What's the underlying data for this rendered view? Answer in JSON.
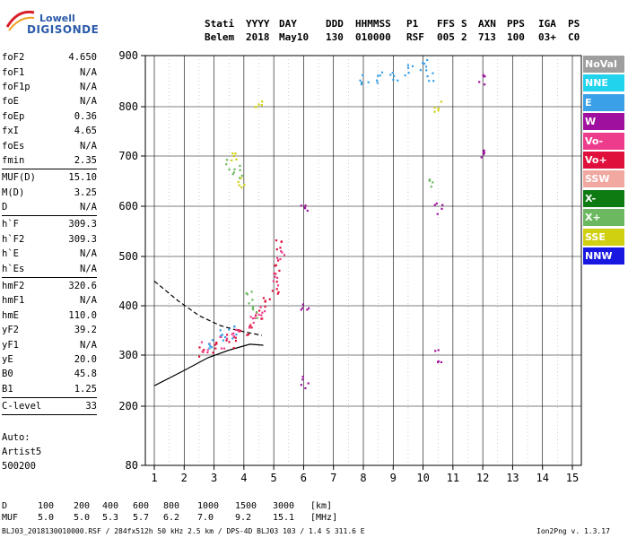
{
  "logo": {
    "line1": "Lowell",
    "line2": "DIGISONDE"
  },
  "header": {
    "row1": [
      "Stati",
      "YYYY",
      "DAY",
      "DDD",
      "HHMMSS",
      "P1",
      "FFS",
      "S",
      "AXN",
      "PPS",
      "IGA",
      "PS"
    ],
    "row2": [
      "Belem",
      "2018",
      "May10",
      "130",
      "010000",
      "RSF",
      "005",
      "2",
      "713",
      "100",
      "03+",
      "C0"
    ]
  },
  "params": [
    {
      "name": "foF2",
      "value": "4.650"
    },
    {
      "name": "foF1",
      "value": "N/A"
    },
    {
      "name": "foF1p",
      "value": "N/A"
    },
    {
      "name": "foE",
      "value": "N/A"
    },
    {
      "name": "foEp",
      "value": "0.36"
    },
    {
      "name": "fxI",
      "value": "4.65"
    },
    {
      "name": "foEs",
      "value": "N/A"
    },
    {
      "name": "fmin",
      "value": "2.35"
    },
    {
      "sep": true
    },
    {
      "name": "MUF(D)",
      "value": "15.10"
    },
    {
      "name": "M(D)",
      "value": "3.25"
    },
    {
      "name": "D",
      "value": "N/A"
    },
    {
      "sep": true
    },
    {
      "name": "h`F",
      "value": "309.3"
    },
    {
      "name": "h`F2",
      "value": "309.3"
    },
    {
      "name": "h`E",
      "value": "N/A"
    },
    {
      "name": "h`Es",
      "value": "N/A"
    },
    {
      "sep": true
    },
    {
      "name": "hmF2",
      "value": "320.6"
    },
    {
      "name": "hmF1",
      "value": "N/A"
    },
    {
      "name": "hmE",
      "value": "110.0"
    },
    {
      "name": "yF2",
      "value": "39.2"
    },
    {
      "name": "yF1",
      "value": "N/A"
    },
    {
      "name": "yE",
      "value": "20.0"
    },
    {
      "name": "B0",
      "value": "45.8"
    },
    {
      "name": "B1",
      "value": "1.25"
    },
    {
      "sep": true
    },
    {
      "name": "C-level",
      "value": "33"
    },
    {
      "sep": true
    }
  ],
  "auto": [
    "Auto:",
    "Artist5",
    "500200"
  ],
  "legend": [
    {
      "label": "NoVal",
      "color": "#9e9e9e"
    },
    {
      "label": "NNE",
      "color": "#22d3ee"
    },
    {
      "label": "E",
      "color": "#3aa0e8"
    },
    {
      "label": "W",
      "color": "#a0109e"
    },
    {
      "label": "Vo-",
      "color": "#ee3c8c"
    },
    {
      "label": "Vo+",
      "color": "#e0103c"
    },
    {
      "label": "SSW",
      "color": "#f0a8a0"
    },
    {
      "label": "X-",
      "color": "#0e7a12"
    },
    {
      "label": "X+",
      "color": "#6cb860"
    },
    {
      "label": "SSE",
      "color": "#d0d010"
    },
    {
      "label": "NNW",
      "color": "#1818e0"
    }
  ],
  "chart_data": {
    "type": "scatter",
    "x_ticks": [
      "1",
      "2",
      "3",
      "4",
      "5",
      "6",
      "7",
      "8",
      "9",
      "10",
      "11",
      "12",
      "13",
      "14",
      "15"
    ],
    "y_ticks": [
      "80",
      "200",
      "300",
      "400",
      "500",
      "600",
      "700",
      "800",
      "900"
    ],
    "xlim": [
      1,
      15
    ],
    "y_scale": "reciprocal",
    "grid": true,
    "series": [
      {
        "name": "Vo+",
        "color": "#e0103c",
        "points": [
          [
            2.6,
            310
          ],
          [
            3.0,
            315
          ],
          [
            3.5,
            330
          ],
          [
            3.8,
            345
          ],
          [
            4.2,
            355
          ],
          [
            4.5,
            380
          ],
          [
            4.7,
            410
          ],
          [
            5.0,
            440
          ],
          [
            5.1,
            480
          ],
          [
            5.2,
            530
          ]
        ]
      },
      {
        "name": "Vo-",
        "color": "#ee3c8c",
        "points": [
          [
            2.7,
            318
          ],
          [
            3.3,
            325
          ],
          [
            3.7,
            340
          ],
          [
            4.3,
            365
          ],
          [
            4.6,
            395
          ],
          [
            5.1,
            455
          ],
          [
            5.2,
            510
          ]
        ]
      },
      {
        "name": "E",
        "color": "#3aa0e8",
        "points": [
          [
            2.8,
            330
          ],
          [
            3.2,
            340
          ],
          [
            3.6,
            350
          ],
          [
            8.0,
            850
          ],
          [
            8.5,
            860
          ],
          [
            9.0,
            855
          ],
          [
            9.5,
            870
          ],
          [
            10.0,
            880
          ],
          [
            10.2,
            865
          ]
        ]
      },
      {
        "name": "W",
        "color": "#a0109e",
        "points": [
          [
            6.0,
            250
          ],
          [
            6.0,
            400
          ],
          [
            6.0,
            600
          ],
          [
            10.5,
            300
          ],
          [
            10.5,
            600
          ],
          [
            12.0,
            700
          ],
          [
            12.0,
            850
          ]
        ]
      },
      {
        "name": "X+",
        "color": "#6cb860",
        "points": [
          [
            3.5,
            680
          ],
          [
            3.8,
            670
          ],
          [
            4.2,
            420
          ],
          [
            4.4,
            390
          ],
          [
            10.3,
            650
          ]
        ]
      },
      {
        "name": "SSE",
        "color": "#d0d010",
        "points": [
          [
            3.6,
            700
          ],
          [
            3.9,
            650
          ],
          [
            4.5,
            800
          ],
          [
            10.5,
            800
          ]
        ]
      }
    ],
    "curves": [
      {
        "style": "dashed",
        "points": [
          [
            1.0,
            450
          ],
          [
            1.8,
            410
          ],
          [
            2.5,
            380
          ],
          [
            3.2,
            360
          ],
          [
            3.8,
            350
          ],
          [
            4.2,
            345
          ],
          [
            4.6,
            340
          ]
        ]
      },
      {
        "style": "solid",
        "points": [
          [
            1.0,
            240
          ],
          [
            2.0,
            270
          ],
          [
            2.8,
            295
          ],
          [
            3.5,
            310
          ],
          [
            4.2,
            322
          ],
          [
            4.65,
            320
          ]
        ]
      }
    ]
  },
  "footer": {
    "d_label": "D",
    "d_values": [
      "100",
      "200",
      "400",
      "600",
      "800",
      "1000",
      "1500",
      "3000",
      "[km]"
    ],
    "muf_label": "MUF",
    "muf_values": [
      "5.0",
      "5.0",
      "5.3",
      "5.7",
      "6.2",
      "7.0",
      "9.2",
      "15.1",
      "[MHz]"
    ],
    "file_info": "BLJ03_2018130010000.RSF / 284fx512h 50 kHz 2.5 km / DPS-4D BLJ03 103 / 1.4 S 311.6 E",
    "version": "Ion2Png v. 1.3.17"
  }
}
